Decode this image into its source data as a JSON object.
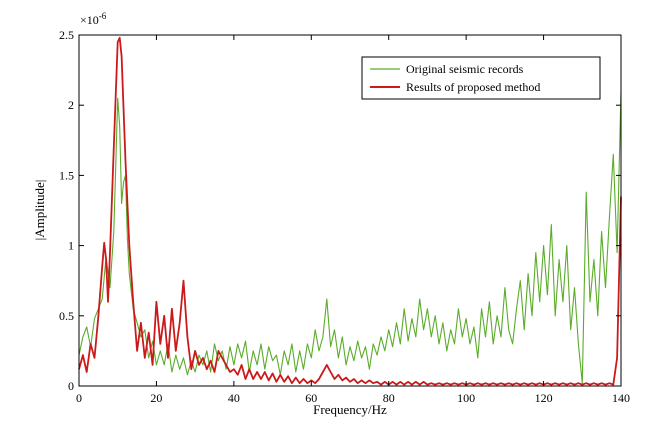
{
  "chart_data": {
    "type": "line",
    "title": "",
    "xlabel": "Frequency/Hz",
    "ylabel": "|Amplitude|",
    "xlim": [
      0,
      140
    ],
    "ylim": [
      0,
      2.5
    ],
    "x_ticks": [
      "0",
      "20",
      "40",
      "60",
      "80",
      "100",
      "120",
      "140"
    ],
    "y_ticks": [
      "0",
      "0.5",
      "1",
      "1.5",
      "2",
      "2.5"
    ],
    "y_exponent_label": "×10",
    "y_exponent_value": "-6",
    "legend_position": "top-right",
    "grid": false,
    "series": [
      {
        "name": "Original seismic records",
        "color": "#5aac2a",
        "points": [
          [
            0,
            0.22
          ],
          [
            1,
            0.35
          ],
          [
            2,
            0.42
          ],
          [
            3,
            0.28
          ],
          [
            4,
            0.48
          ],
          [
            5,
            0.55
          ],
          [
            6,
            0.62
          ],
          [
            7,
            0.92
          ],
          [
            8,
            0.7
          ],
          [
            9,
            1.1
          ],
          [
            10,
            2.05
          ],
          [
            10.5,
            1.85
          ],
          [
            11,
            1.3
          ],
          [
            11.5,
            1.45
          ],
          [
            12,
            1.5
          ],
          [
            12.5,
            1.05
          ],
          [
            13,
            0.8
          ],
          [
            14,
            0.55
          ],
          [
            15,
            0.45
          ],
          [
            16,
            0.35
          ],
          [
            17,
            0.4
          ],
          [
            18,
            0.2
          ],
          [
            19,
            0.32
          ],
          [
            20,
            0.15
          ],
          [
            21,
            0.25
          ],
          [
            22,
            0.15
          ],
          [
            23,
            0.3
          ],
          [
            24,
            0.1
          ],
          [
            25,
            0.22
          ],
          [
            26,
            0.12
          ],
          [
            27,
            0.2
          ],
          [
            28,
            0.08
          ],
          [
            29,
            0.18
          ],
          [
            30,
            0.1
          ],
          [
            31,
            0.22
          ],
          [
            32,
            0.15
          ],
          [
            33,
            0.25
          ],
          [
            34,
            0.1
          ],
          [
            35,
            0.3
          ],
          [
            36,
            0.18
          ],
          [
            37,
            0.25
          ],
          [
            38,
            0.12
          ],
          [
            39,
            0.28
          ],
          [
            40,
            0.15
          ],
          [
            41,
            0.3
          ],
          [
            42,
            0.2
          ],
          [
            43,
            0.32
          ],
          [
            44,
            0.1
          ],
          [
            45,
            0.25
          ],
          [
            46,
            0.15
          ],
          [
            47,
            0.3
          ],
          [
            48,
            0.12
          ],
          [
            49,
            0.28
          ],
          [
            50,
            0.18
          ],
          [
            51,
            0.22
          ],
          [
            52,
            0.08
          ],
          [
            53,
            0.25
          ],
          [
            54,
            0.15
          ],
          [
            55,
            0.3
          ],
          [
            56,
            0.1
          ],
          [
            57,
            0.25
          ],
          [
            58,
            0.12
          ],
          [
            59,
            0.3
          ],
          [
            60,
            0.2
          ],
          [
            61,
            0.4
          ],
          [
            62,
            0.25
          ],
          [
            63,
            0.35
          ],
          [
            64,
            0.62
          ],
          [
            65,
            0.28
          ],
          [
            66,
            0.4
          ],
          [
            67,
            0.2
          ],
          [
            68,
            0.35
          ],
          [
            69,
            0.15
          ],
          [
            70,
            0.28
          ],
          [
            71,
            0.18
          ],
          [
            72,
            0.32
          ],
          [
            73,
            0.2
          ],
          [
            74,
            0.28
          ],
          [
            75,
            0.12
          ],
          [
            76,
            0.3
          ],
          [
            77,
            0.22
          ],
          [
            78,
            0.35
          ],
          [
            79,
            0.25
          ],
          [
            80,
            0.4
          ],
          [
            81,
            0.28
          ],
          [
            82,
            0.45
          ],
          [
            83,
            0.3
          ],
          [
            84,
            0.55
          ],
          [
            85,
            0.32
          ],
          [
            86,
            0.48
          ],
          [
            87,
            0.35
          ],
          [
            88,
            0.62
          ],
          [
            89,
            0.4
          ],
          [
            90,
            0.55
          ],
          [
            91,
            0.35
          ],
          [
            92,
            0.5
          ],
          [
            93,
            0.3
          ],
          [
            94,
            0.45
          ],
          [
            95,
            0.25
          ],
          [
            96,
            0.4
          ],
          [
            97,
            0.3
          ],
          [
            98,
            0.55
          ],
          [
            99,
            0.35
          ],
          [
            100,
            0.48
          ],
          [
            101,
            0.3
          ],
          [
            102,
            0.42
          ],
          [
            103,
            0.2
          ],
          [
            104,
            0.55
          ],
          [
            105,
            0.35
          ],
          [
            106,
            0.6
          ],
          [
            107,
            0.3
          ],
          [
            108,
            0.5
          ],
          [
            109,
            0.35
          ],
          [
            110,
            0.7
          ],
          [
            111,
            0.4
          ],
          [
            112,
            0.3
          ],
          [
            113,
            0.55
          ],
          [
            114,
            0.75
          ],
          [
            115,
            0.4
          ],
          [
            116,
            0.8
          ],
          [
            117,
            0.5
          ],
          [
            118,
            0.95
          ],
          [
            119,
            0.6
          ],
          [
            120,
            1.0
          ],
          [
            121,
            0.65
          ],
          [
            122,
            1.15
          ],
          [
            123,
            0.5
          ],
          [
            124,
            0.9
          ],
          [
            125,
            0.6
          ],
          [
            126,
            1.0
          ],
          [
            127,
            0.4
          ],
          [
            128,
            0.7
          ],
          [
            129,
            0.3
          ],
          [
            130,
            0.02
          ],
          [
            131,
            1.38
          ],
          [
            132,
            0.6
          ],
          [
            133,
            0.9
          ],
          [
            134,
            0.5
          ],
          [
            135,
            1.1
          ],
          [
            136,
            0.7
          ],
          [
            137,
            1.2
          ],
          [
            138,
            1.65
          ],
          [
            139,
            0.95
          ],
          [
            140,
            2.1
          ]
        ]
      },
      {
        "name": "Results of proposed method",
        "color": "#cc1a1a",
        "points": [
          [
            0,
            0.12
          ],
          [
            1,
            0.22
          ],
          [
            2,
            0.1
          ],
          [
            3,
            0.3
          ],
          [
            4,
            0.2
          ],
          [
            5,
            0.5
          ],
          [
            6,
            0.85
          ],
          [
            6.5,
            1.02
          ],
          [
            7,
            0.9
          ],
          [
            7.5,
            0.6
          ],
          [
            8,
            0.95
          ],
          [
            9,
            1.7
          ],
          [
            10,
            2.45
          ],
          [
            10.5,
            2.48
          ],
          [
            11,
            2.35
          ],
          [
            12,
            1.6
          ],
          [
            13,
            1.0
          ],
          [
            14,
            0.6
          ],
          [
            15,
            0.25
          ],
          [
            16,
            0.45
          ],
          [
            17,
            0.2
          ],
          [
            18,
            0.38
          ],
          [
            19,
            0.15
          ],
          [
            20,
            0.6
          ],
          [
            21,
            0.3
          ],
          [
            22,
            0.5
          ],
          [
            23,
            0.2
          ],
          [
            24,
            0.55
          ],
          [
            25,
            0.25
          ],
          [
            26,
            0.45
          ],
          [
            27,
            0.75
          ],
          [
            28,
            0.35
          ],
          [
            29,
            0.12
          ],
          [
            30,
            0.25
          ],
          [
            31,
            0.15
          ],
          [
            32,
            0.2
          ],
          [
            33,
            0.12
          ],
          [
            34,
            0.18
          ],
          [
            35,
            0.1
          ],
          [
            36,
            0.25
          ],
          [
            37,
            0.2
          ],
          [
            38,
            0.15
          ],
          [
            39,
            0.1
          ],
          [
            40,
            0.12
          ],
          [
            41,
            0.08
          ],
          [
            42,
            0.15
          ],
          [
            43,
            0.05
          ],
          [
            44,
            0.12
          ],
          [
            45,
            0.05
          ],
          [
            46,
            0.1
          ],
          [
            47,
            0.05
          ],
          [
            48,
            0.1
          ],
          [
            49,
            0.04
          ],
          [
            50,
            0.09
          ],
          [
            51,
            0.03
          ],
          [
            52,
            0.08
          ],
          [
            53,
            0.03
          ],
          [
            54,
            0.07
          ],
          [
            55,
            0.02
          ],
          [
            56,
            0.06
          ],
          [
            57,
            0.02
          ],
          [
            58,
            0.05
          ],
          [
            59,
            0.02
          ],
          [
            60,
            0.04
          ],
          [
            61,
            0.02
          ],
          [
            62,
            0.05
          ],
          [
            63,
            0.1
          ],
          [
            64,
            0.15
          ],
          [
            65,
            0.1
          ],
          [
            66,
            0.05
          ],
          [
            67,
            0.08
          ],
          [
            68,
            0.04
          ],
          [
            69,
            0.06
          ],
          [
            70,
            0.03
          ],
          [
            71,
            0.05
          ],
          [
            72,
            0.02
          ],
          [
            73,
            0.04
          ],
          [
            74,
            0.02
          ],
          [
            75,
            0.04
          ],
          [
            76,
            0.02
          ],
          [
            77,
            0.03
          ],
          [
            78,
            0.01
          ],
          [
            79,
            0.03
          ],
          [
            80,
            0.01
          ],
          [
            81,
            0.03
          ],
          [
            82,
            0.01
          ],
          [
            83,
            0.03
          ],
          [
            84,
            0.01
          ],
          [
            85,
            0.03
          ],
          [
            86,
            0.01
          ],
          [
            87,
            0.03
          ],
          [
            88,
            0.01
          ],
          [
            89,
            0.03
          ],
          [
            90,
            0.01
          ],
          [
            91,
            0.02
          ],
          [
            92,
            0.01
          ],
          [
            93,
            0.02
          ],
          [
            94,
            0.01
          ],
          [
            95,
            0.02
          ],
          [
            96,
            0.01
          ],
          [
            97,
            0.02
          ],
          [
            98,
            0.01
          ],
          [
            99,
            0.02
          ],
          [
            100,
            0.01
          ],
          [
            101,
            0.02
          ],
          [
            102,
            0.01
          ],
          [
            103,
            0.02
          ],
          [
            104,
            0.01
          ],
          [
            105,
            0.02
          ],
          [
            106,
            0.01
          ],
          [
            107,
            0.02
          ],
          [
            108,
            0.01
          ],
          [
            109,
            0.02
          ],
          [
            110,
            0.01
          ],
          [
            111,
            0.02
          ],
          [
            112,
            0.01
          ],
          [
            113,
            0.02
          ],
          [
            114,
            0.01
          ],
          [
            115,
            0.02
          ],
          [
            116,
            0.01
          ],
          [
            117,
            0.02
          ],
          [
            118,
            0.01
          ],
          [
            119,
            0.02
          ],
          [
            120,
            0.01
          ],
          [
            121,
            0.02
          ],
          [
            122,
            0.01
          ],
          [
            123,
            0.02
          ],
          [
            124,
            0.01
          ],
          [
            125,
            0.02
          ],
          [
            126,
            0.01
          ],
          [
            127,
            0.02
          ],
          [
            128,
            0.01
          ],
          [
            129,
            0.02
          ],
          [
            130,
            0.01
          ],
          [
            131,
            0.02
          ],
          [
            132,
            0.01
          ],
          [
            133,
            0.02
          ],
          [
            134,
            0.01
          ],
          [
            135,
            0.02
          ],
          [
            136,
            0.01
          ],
          [
            137,
            0.02
          ],
          [
            138,
            0.01
          ],
          [
            139,
            0.2
          ],
          [
            140,
            1.35
          ]
        ]
      }
    ]
  }
}
